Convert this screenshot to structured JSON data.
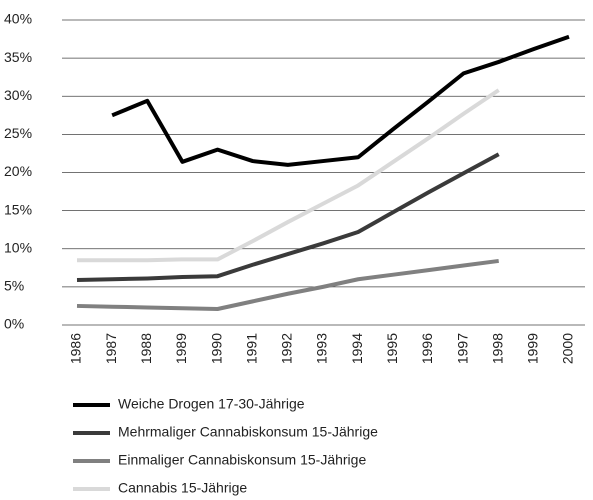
{
  "chart_data": {
    "type": "line",
    "categories": [
      "1986",
      "1987",
      "1988",
      "1989",
      "1990",
      "1991",
      "1992",
      "1993",
      "1994",
      "1995",
      "1996",
      "1997",
      "1998",
      "1999",
      "2000"
    ],
    "series": [
      {
        "name": "Weiche Drogen 17-30-Jährige",
        "color": "#000000",
        "values": [
          null,
          27.5,
          29.4,
          21.4,
          23,
          21.5,
          21,
          21.5,
          22,
          25.7,
          29.3,
          33,
          34.5,
          36.2,
          37.8
        ]
      },
      {
        "name": "Mehrmaliger Cannabiskonsum 15-Jährige",
        "color": "#3a3a3a",
        "values": [
          5.9,
          6.0,
          6.1,
          6.3,
          6.4,
          7.9,
          9.3,
          10.7,
          12.2,
          14.8,
          17.4,
          19.9,
          22.4,
          null,
          null
        ]
      },
      {
        "name": "Einmaliger Cannabiskonsum 15-Jährige",
        "color": "#808080",
        "values": [
          2.5,
          2.4,
          2.3,
          2.2,
          2.1,
          3.1,
          4.1,
          5.0,
          6.0,
          6.6,
          7.2,
          7.8,
          8.4,
          null,
          null
        ]
      },
      {
        "name": "Cannabis 15-Jährige",
        "color": "#d9d9d9",
        "values": [
          8.5,
          8.5,
          8.5,
          8.6,
          8.6,
          11.0,
          13.5,
          15.9,
          18.3,
          21.4,
          24.5,
          27.7,
          30.8,
          null,
          null
        ]
      }
    ],
    "ylim": [
      0,
      40
    ],
    "yticks": [
      {
        "value": 0,
        "label": "0%"
      },
      {
        "value": 5,
        "label": "5%"
      },
      {
        "value": 10,
        "label": "10%"
      },
      {
        "value": 15,
        "label": "15%"
      },
      {
        "value": 20,
        "label": "20%"
      },
      {
        "value": 25,
        "label": "25%"
      },
      {
        "value": 30,
        "label": "30%"
      },
      {
        "value": 35,
        "label": "35%"
      },
      {
        "value": 40,
        "label": "40%"
      }
    ],
    "grid": true,
    "legend": "bottom"
  }
}
